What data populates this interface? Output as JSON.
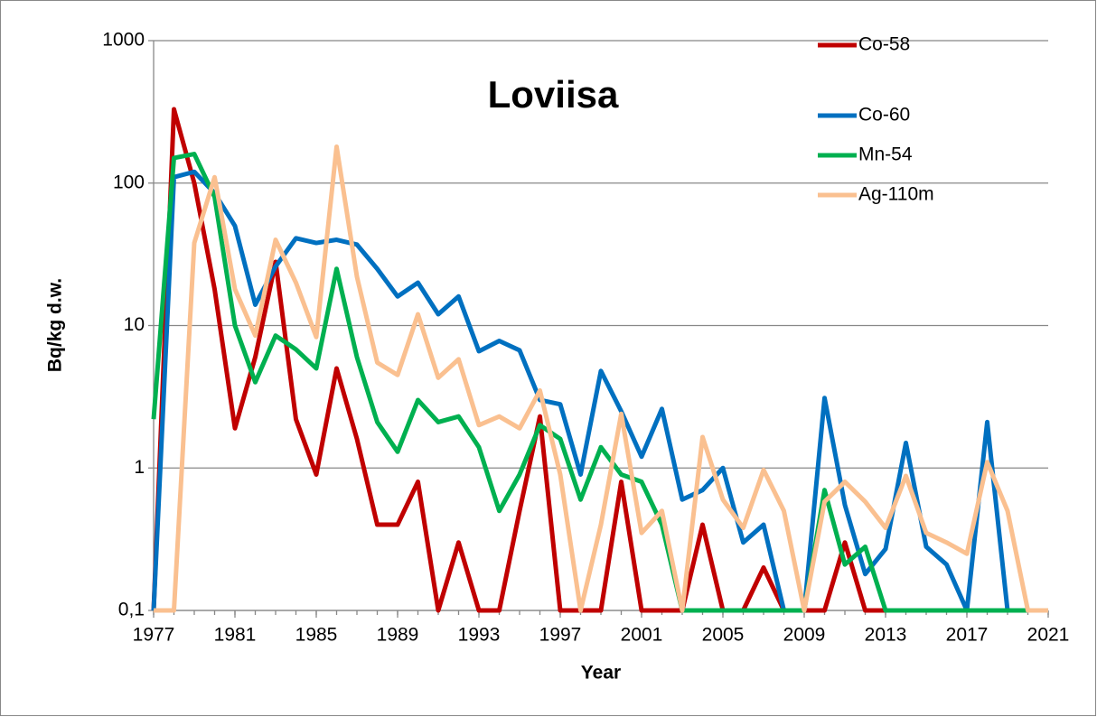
{
  "chart_data": {
    "type": "line",
    "title": "Loviisa",
    "x_label": "Year",
    "y_label": "Bq/kg d.w.",
    "log_y": true,
    "grid": true,
    "legend": "top-right",
    "x": [
      1977,
      1978,
      1979,
      1980,
      1981,
      1982,
      1983,
      1984,
      1985,
      1986,
      1987,
      1988,
      1989,
      1990,
      1991,
      1992,
      1993,
      1994,
      1995,
      1996,
      1997,
      1998,
      1999,
      2000,
      2001,
      2002,
      2003,
      2004,
      2005,
      2006,
      2007,
      2008,
      2009,
      2010,
      2011,
      2012,
      2013,
      2014,
      2015,
      2016,
      2017,
      2018,
      2019,
      2020,
      2021
    ],
    "xlim": [
      1977,
      2021
    ],
    "xticks": [
      1977,
      1981,
      1985,
      1989,
      1993,
      1997,
      2001,
      2005,
      2009,
      2013,
      2017,
      2021
    ],
    "ylim": [
      0.1,
      1000
    ],
    "yticks": [
      {
        "value": 0.1,
        "label": "0,1"
      },
      1,
      10,
      100,
      1000
    ],
    "series": [
      {
        "name": "Co-58",
        "color": "#c00000",
        "values": [
          0.1,
          330,
          100,
          18,
          1.9,
          6,
          28,
          2.2,
          0.9,
          5,
          1.6,
          0.4,
          0.4,
          0.8,
          0.1,
          0.3,
          0.1,
          0.1,
          0.5,
          2.3,
          0.1,
          0.1,
          0.1,
          0.8,
          0.1,
          0.1,
          0.1,
          0.4,
          0.1,
          0.1,
          0.2,
          0.1,
          0.1,
          0.1,
          0.3,
          0.1,
          0.1,
          0.1,
          0.1,
          0.1,
          0.1,
          0.1,
          0.1,
          0.1,
          0.1
        ]
      },
      {
        "name": "Co-60",
        "color": "#0070c0",
        "values": [
          0.1,
          110,
          120,
          85,
          50,
          14,
          26,
          41,
          38,
          40,
          37,
          25,
          16,
          20,
          12,
          16,
          6.6,
          7.8,
          6.7,
          3.0,
          2.8,
          0.9,
          4.8,
          2.5,
          1.2,
          2.6,
          0.6,
          0.7,
          1.0,
          0.3,
          0.4,
          0.1,
          0.1,
          3.1,
          0.55,
          0.18,
          0.27,
          1.5,
          0.28,
          0.21,
          0.1,
          2.1,
          0.1,
          0.1,
          0.1
        ]
      },
      {
        "name": "Mn-54",
        "color": "#00b050",
        "values": [
          2.2,
          150,
          160,
          80,
          10,
          4,
          8.5,
          6.8,
          5,
          25,
          6,
          2.1,
          1.3,
          3,
          2.1,
          2.3,
          1.4,
          0.5,
          0.9,
          2.0,
          1.6,
          0.6,
          1.4,
          0.9,
          0.8,
          0.4,
          0.1,
          0.1,
          0.1,
          0.1,
          0.1,
          0.1,
          0.1,
          0.7,
          0.21,
          0.28,
          0.1,
          0.1,
          0.1,
          0.1,
          0.1,
          0.1,
          0.1,
          0.1,
          0.1
        ]
      },
      {
        "name": "Ag-110m",
        "color": "#fac090",
        "values": [
          0.1,
          0.1,
          38,
          110,
          18,
          8.5,
          40,
          20,
          8.3,
          180,
          22,
          5.5,
          4.5,
          12,
          4.3,
          5.8,
          2.0,
          2.3,
          1.9,
          3.5,
          0.9,
          0.1,
          0.4,
          2.4,
          0.35,
          0.5,
          0.1,
          1.65,
          0.6,
          0.38,
          0.97,
          0.5,
          0.1,
          0.58,
          0.8,
          0.58,
          0.38,
          0.88,
          0.35,
          0.3,
          0.25,
          1.1,
          0.5,
          0.1,
          0.1
        ]
      }
    ]
  }
}
